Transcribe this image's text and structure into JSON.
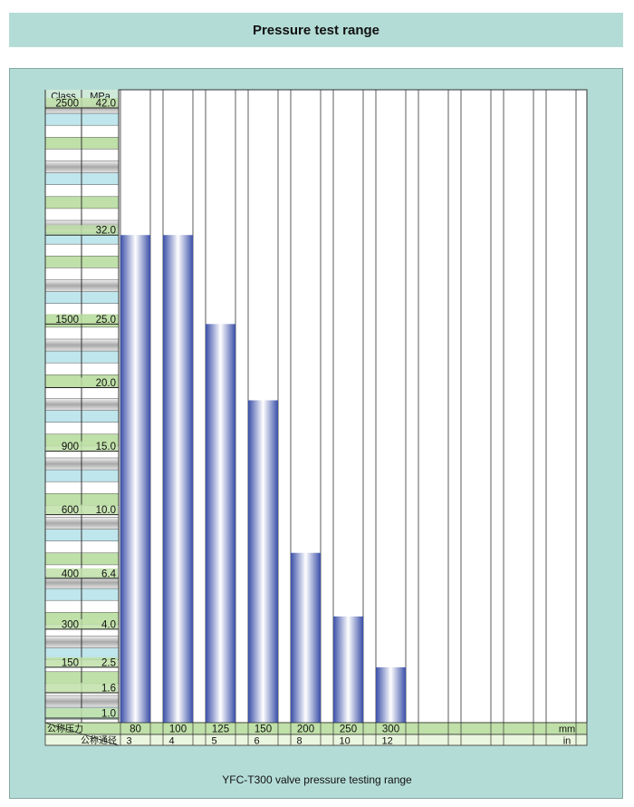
{
  "title": "Pressure test range",
  "caption": "YFC-T300 valve pressure testing range",
  "chart_data": {
    "type": "bar",
    "header_class": "Class",
    "header_mpa": "MPa",
    "row_label_pressure": "公称压力",
    "row_label_diameter": "公称通径",
    "unit_mm": "mm",
    "unit_in": "in",
    "categories_mm": [
      "80",
      "100",
      "125",
      "150",
      "200",
      "250",
      "300",
      "",
      "",
      "",
      ""
    ],
    "categories_in": [
      "3",
      "4",
      "5",
      "6",
      "8",
      "10",
      "12",
      "",
      "",
      "",
      ""
    ],
    "values": [
      32.0,
      32.0,
      25.0,
      19.0,
      7.0,
      2.0,
      -2.0
    ],
    "y_ticks": [
      {
        "class": "2500",
        "mpa": "42.0",
        "value": 42
      },
      {
        "class": "",
        "mpa": "32.0",
        "value": 32
      },
      {
        "class": "1500",
        "mpa": "25.0",
        "value": 25
      },
      {
        "class": "",
        "mpa": "20.0",
        "value": 20
      },
      {
        "class": "900",
        "mpa": "15.0",
        "value": 15
      },
      {
        "class": "600",
        "mpa": "10.0",
        "value": 10
      },
      {
        "class": "400",
        "mpa": "6.4",
        "value": 5
      },
      {
        "class": "300",
        "mpa": "4.0",
        "value": 1
      },
      {
        "class": "150",
        "mpa": "2.5",
        "value": -2
      },
      {
        "class": "",
        "mpa": "1.6",
        "value": -4
      },
      {
        "class": "",
        "mpa": "1.0",
        "value": -6
      }
    ],
    "ylim": [
      -7,
      43
    ],
    "colors": {
      "panel": "#b4dcd6",
      "bar_edge": "#3a4fa8",
      "bar_light": "#ffffff",
      "grid": "#333333",
      "row_green": "#bfe0a8",
      "row_blue": "#bfe6ec",
      "row_gray": "#b8b8b8",
      "axis_header": "#cfe9d8"
    }
  }
}
